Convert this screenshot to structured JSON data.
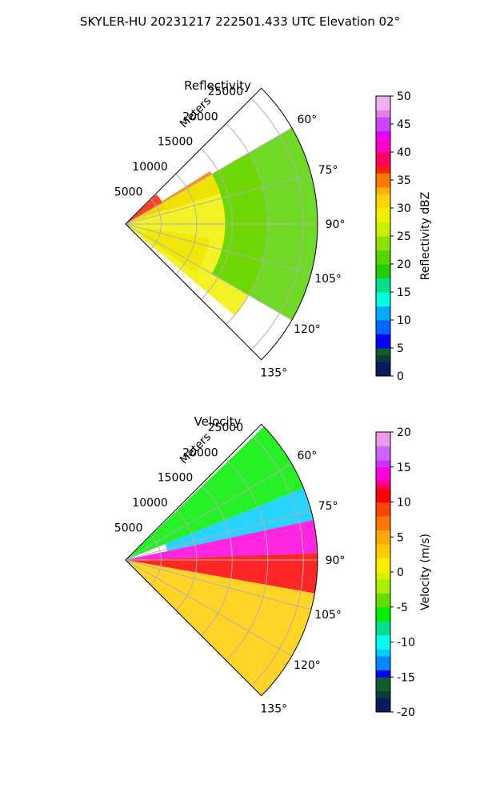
{
  "figure": {
    "title": "SKYLER-HU  20231217  222501.433 UTC Elevation 02°"
  },
  "chart_data": [
    {
      "type": "heatmap",
      "subtype": "polar-sector",
      "title": "Reflectivity",
      "range_label": "Meters",
      "range_ticks": [
        5000,
        10000,
        15000,
        20000,
        25000
      ],
      "range_max": 27000,
      "azimuth_range_deg": [
        45,
        135
      ],
      "azimuth_ticks_deg": [
        60,
        75,
        90,
        105,
        120,
        135
      ],
      "azimuth_tick_labels": [
        "60°",
        "75°",
        "90°",
        "105°",
        "120°",
        "135°"
      ],
      "grid": true,
      "colorbar": {
        "label": "Reflectivity dBZ",
        "range": [
          0,
          50
        ],
        "ticks": [
          0,
          5,
          10,
          15,
          20,
          25,
          30,
          35,
          40,
          45,
          50
        ],
        "colormap": "pyart_HomeyerRainbow"
      },
      "regions": [
        {
          "az": [
            46,
            70
          ],
          "r": [
            0,
            6000
          ],
          "value": 37
        },
        {
          "az": [
            58,
            72
          ],
          "r": [
            6000,
            14000
          ],
          "value": 34
        },
        {
          "az": [
            100,
            125
          ],
          "r": [
            3000,
            12000
          ],
          "value": 32
        },
        {
          "az": [
            60,
            130
          ],
          "r": [
            0,
            20000
          ],
          "value": 28
        },
        {
          "az": [
            60,
            120
          ],
          "r": [
            14000,
            27000
          ],
          "value": 21
        }
      ]
    },
    {
      "type": "heatmap",
      "subtype": "polar-sector",
      "title": "Velocity",
      "range_label": "Meters",
      "range_ticks": [
        5000,
        10000,
        15000,
        20000,
        25000
      ],
      "range_max": 27000,
      "azimuth_range_deg": [
        45,
        135
      ],
      "azimuth_ticks_deg": [
        60,
        75,
        90,
        105,
        120,
        135
      ],
      "azimuth_tick_labels": [
        "60°",
        "75°",
        "90°",
        "105°",
        "120°",
        "135°"
      ],
      "grid": true,
      "colorbar": {
        "label": "Velocity (m/s)",
        "range": [
          -20,
          20
        ],
        "ticks": [
          -20,
          -15,
          -10,
          -5,
          0,
          5,
          10,
          15,
          20
        ],
        "colormap": "pyart_balance_like"
      },
      "regions": [
        {
          "az": [
            46,
            68
          ],
          "r": [
            0,
            27000
          ],
          "value": -7
        },
        {
          "az": [
            68,
            78
          ],
          "r": [
            6000,
            27000
          ],
          "value": -11
        },
        {
          "az": [
            78,
            88
          ],
          "r": [
            0,
            27000
          ],
          "value": 14
        },
        {
          "az": [
            88,
            100
          ],
          "r": [
            0,
            27000
          ],
          "value": 10
        },
        {
          "az": [
            100,
            135
          ],
          "r": [
            0,
            27000
          ],
          "value": 3
        }
      ]
    }
  ]
}
